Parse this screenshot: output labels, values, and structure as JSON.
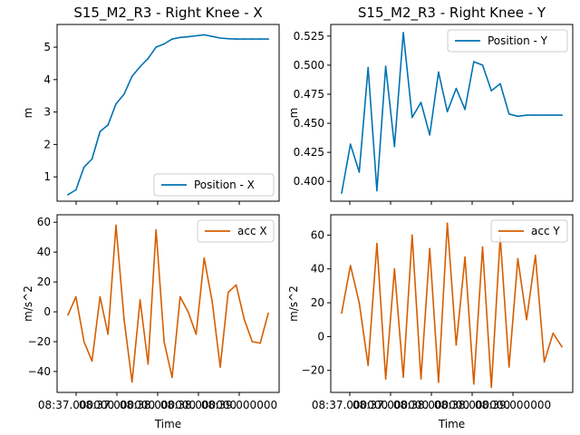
{
  "chart_data": [
    {
      "type": "line",
      "title": "S15_M2_R3 - Right Knee - X",
      "xlabel": "",
      "ylabel": "m",
      "ylim": [
        0.25,
        5.7
      ],
      "yticks": [
        1,
        2,
        3,
        4,
        5
      ],
      "ytick_labels": [
        "1",
        "2",
        "3",
        "4",
        "5"
      ],
      "xticks": [],
      "xtick_labels": [],
      "legend": "lower-right",
      "series": [
        {
          "name": "Position - X",
          "color": "#0072b2",
          "x": [
            0,
            0.2,
            0.4,
            0.6,
            0.8,
            1.0,
            1.2,
            1.4,
            1.6,
            1.8,
            2.0,
            2.2,
            2.4,
            2.6,
            2.8,
            3.0,
            3.2,
            3.4,
            3.6,
            3.8,
            4.0,
            4.2,
            4.4,
            4.6,
            4.8,
            5.0
          ],
          "y": [
            0.45,
            0.6,
            1.3,
            1.55,
            2.4,
            2.6,
            3.25,
            3.55,
            4.1,
            4.4,
            4.65,
            5.0,
            5.1,
            5.25,
            5.3,
            5.32,
            5.35,
            5.38,
            5.33,
            5.28,
            5.26,
            5.25,
            5.25,
            5.25,
            5.25,
            5.25
          ]
        }
      ]
    },
    {
      "type": "line",
      "title": "S15_M2_R3 - Right Knee - Y",
      "xlabel": "",
      "ylabel": "m",
      "ylim": [
        0.383,
        0.535
      ],
      "yticks": [
        0.4,
        0.425,
        0.45,
        0.475,
        0.5,
        0.525
      ],
      "ytick_labels": [
        "0.400",
        "0.425",
        "0.450",
        "0.475",
        "0.500",
        "0.525"
      ],
      "xticks": [],
      "xtick_labels": [],
      "legend": "upper-right",
      "series": [
        {
          "name": "Position - Y",
          "color": "#0072b2",
          "x": [
            0,
            0.2,
            0.4,
            0.6,
            0.8,
            1.0,
            1.2,
            1.4,
            1.6,
            1.8,
            2.0,
            2.2,
            2.4,
            2.6,
            2.8,
            3.0,
            3.2,
            3.4,
            3.6,
            3.8,
            4.0,
            4.2,
            4.4,
            4.6,
            4.8,
            5.0
          ],
          "y": [
            0.39,
            0.432,
            0.408,
            0.498,
            0.392,
            0.499,
            0.43,
            0.528,
            0.455,
            0.468,
            0.44,
            0.494,
            0.46,
            0.48,
            0.462,
            0.503,
            0.5,
            0.478,
            0.484,
            0.458,
            0.456,
            0.457,
            0.457,
            0.457,
            0.457,
            0.457
          ]
        }
      ]
    },
    {
      "type": "line",
      "title": "",
      "xlabel": "Time",
      "ylabel": "m/s^2",
      "ylim": [
        -54,
        65
      ],
      "yticks": [
        -40,
        -20,
        0,
        20,
        40,
        60
      ],
      "ytick_labels": [
        "−40",
        "−20",
        "0",
        "20",
        "40",
        "60"
      ],
      "xticks": [
        0,
        1,
        2,
        3,
        4
      ],
      "xtick_labels": [
        "08:37.000000",
        "08:37.000000",
        "08:38.000000",
        "08:38.000000",
        "08:39.000000"
      ],
      "legend": "upper-right",
      "series": [
        {
          "name": "acc X",
          "color": "#d55e00",
          "x": [
            0,
            0.2,
            0.4,
            0.6,
            0.8,
            1.0,
            1.2,
            1.4,
            1.6,
            1.8,
            2.0,
            2.2,
            2.4,
            2.6,
            2.8,
            3.0,
            3.2,
            3.4,
            3.6,
            3.8,
            4.0,
            4.2,
            4.4,
            4.6,
            4.8,
            5.0
          ],
          "y": [
            -2,
            10,
            -20,
            -33,
            10,
            -15,
            58,
            -5,
            -47,
            8,
            -35,
            55,
            -20,
            -44,
            10,
            0,
            -15,
            36,
            7,
            -37,
            13,
            18,
            -5,
            -20,
            -21,
            -1
          ]
        }
      ]
    },
    {
      "type": "line",
      "title": "",
      "xlabel": "Time",
      "ylabel": "m/s^2",
      "ylim": [
        -33,
        72
      ],
      "yticks": [
        -20,
        0,
        20,
        40,
        60
      ],
      "ytick_labels": [
        "−20",
        "0",
        "20",
        "40",
        "60"
      ],
      "xticks": [
        0,
        1,
        2,
        3,
        4
      ],
      "xtick_labels": [
        "08:37.000000",
        "08:37.000000",
        "08:38.000000",
        "08:38.000000",
        "08:39.000000"
      ],
      "legend": "upper-right",
      "series": [
        {
          "name": "acc Y",
          "color": "#d55e00",
          "x": [
            0,
            0.2,
            0.4,
            0.6,
            0.8,
            1.0,
            1.2,
            1.4,
            1.6,
            1.8,
            2.0,
            2.2,
            2.4,
            2.6,
            2.8,
            3.0,
            3.2,
            3.4,
            3.6,
            3.8,
            4.0,
            4.2,
            4.4,
            4.6,
            4.8,
            5.0
          ],
          "y": [
            14,
            42,
            20,
            -17,
            55,
            -25,
            40,
            -24,
            60,
            -25,
            52,
            -27,
            67,
            -5,
            47,
            -28,
            53,
            -30,
            59,
            -18,
            46,
            10,
            48,
            -15,
            2,
            -6
          ]
        }
      ]
    }
  ]
}
